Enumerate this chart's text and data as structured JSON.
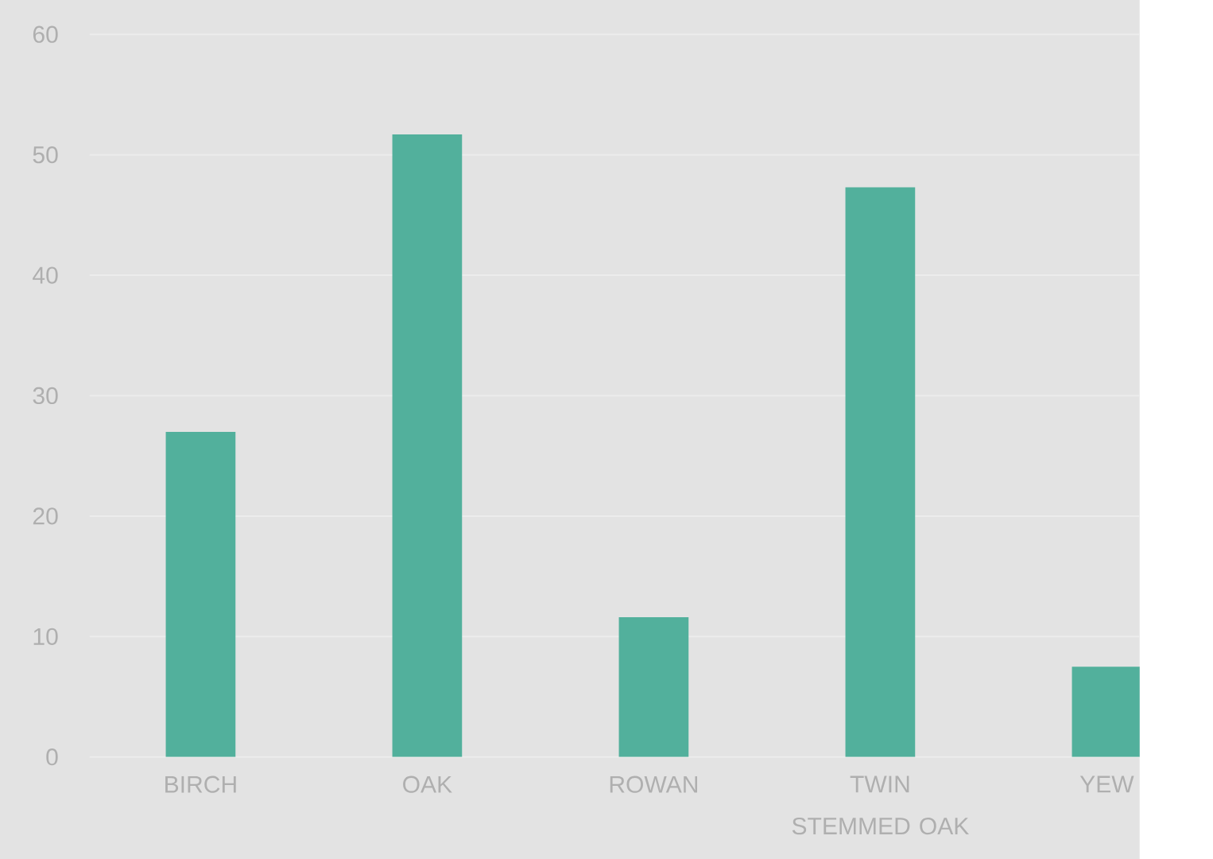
{
  "chart_data": {
    "type": "bar",
    "categories": [
      "BIRCH",
      "OAK",
      "ROWAN",
      "TWIN STEMMED OAK",
      "YEW"
    ],
    "values": [
      27.0,
      51.7,
      11.6,
      47.3,
      7.5
    ],
    "color": "#52b09c",
    "ylim": [
      0,
      60
    ],
    "yticks": [
      0,
      10,
      20,
      30,
      40,
      50,
      60
    ],
    "grid": "y"
  }
}
